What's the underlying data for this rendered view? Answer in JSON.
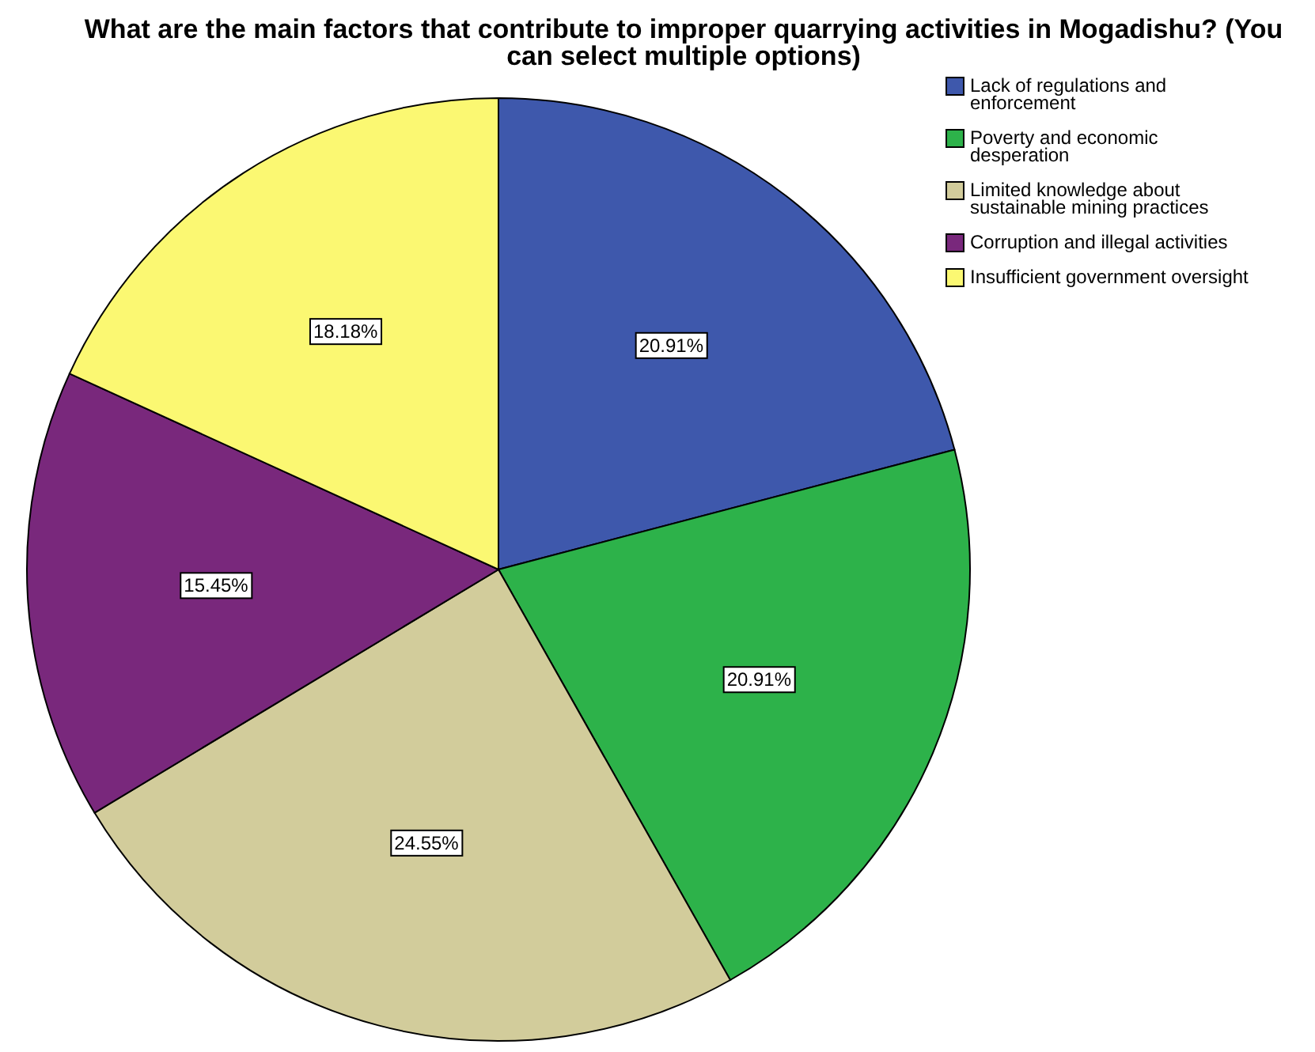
{
  "chart_data": {
    "type": "pie",
    "title": "What are the main factors that contribute to improper quarrying activities in Mogadishu? (You can select multiple options)",
    "categories": [
      "Lack of regulations and enforcement",
      "Poverty and economic desperation",
      "Limited knowledge about sustainable mining practices",
      "Corruption and illegal activities",
      "Insufficient government oversight"
    ],
    "values": [
      20.91,
      20.91,
      24.55,
      15.45,
      18.18
    ],
    "value_labels": [
      "20.91%",
      "20.91%",
      "24.55%",
      "15.45%",
      "18.18%"
    ],
    "colors": [
      "#3e58ac",
      "#2db24a",
      "#d2cc9b",
      "#79287c",
      "#fbf872"
    ],
    "legend": "top right"
  }
}
